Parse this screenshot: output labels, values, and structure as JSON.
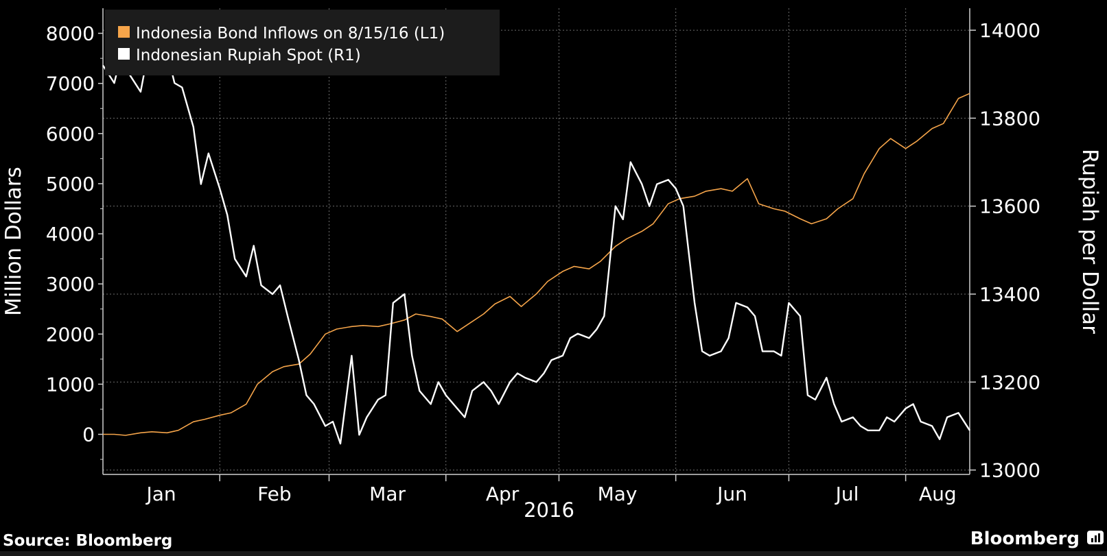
{
  "colors": {
    "background": "#000000",
    "legend_bg": "#1c1c1c",
    "grid": "#6e6e6e",
    "axis": "#cfcfcf",
    "text": "#ffffff",
    "bond_series": "#f6a54a",
    "rupiah_series": "#ffffff"
  },
  "footer": {
    "source": "Source: Bloomberg",
    "brand": "Bloomberg",
    "brand_icon": "bloomberg-terminal-icon"
  },
  "chart_data": {
    "type": "line",
    "title": "",
    "xlabel": "2016",
    "ylabel_left": "Million Dollars",
    "ylabel_right": "Rupiah per Dollar",
    "x_ticks": [
      "Jan",
      "Feb",
      "Mar",
      "Apr",
      "May",
      "Jun",
      "Jul",
      "Aug"
    ],
    "x_range": [
      "2016-01-01",
      "2016-08-18"
    ],
    "y_left": {
      "ticks": [
        0,
        1000,
        2000,
        3000,
        4000,
        5000,
        6000,
        7000,
        8000
      ],
      "range": [
        -800,
        8500
      ]
    },
    "y_right": {
      "ticks": [
        13000,
        13200,
        13400,
        13600,
        13800,
        14000
      ],
      "range": [
        12990,
        14050
      ]
    },
    "grid": true,
    "legend_position": "top-left",
    "series": [
      {
        "name": "Indonesia Bond Inflows on 8/15/16 (L1)",
        "axis": "left",
        "color": "#f6a54a",
        "points": [
          [
            "2016-01-01",
            0
          ],
          [
            "2016-01-04",
            0
          ],
          [
            "2016-01-07",
            -20
          ],
          [
            "2016-01-11",
            30
          ],
          [
            "2016-01-14",
            50
          ],
          [
            "2016-01-18",
            30
          ],
          [
            "2016-01-21",
            80
          ],
          [
            "2016-01-25",
            250
          ],
          [
            "2016-01-28",
            300
          ],
          [
            "2016-02-01",
            380
          ],
          [
            "2016-02-04",
            430
          ],
          [
            "2016-02-08",
            600
          ],
          [
            "2016-02-11",
            1000
          ],
          [
            "2016-02-15",
            1250
          ],
          [
            "2016-02-18",
            1350
          ],
          [
            "2016-02-22",
            1400
          ],
          [
            "2016-02-25",
            1600
          ],
          [
            "2016-02-29",
            2000
          ],
          [
            "2016-03-03",
            2100
          ],
          [
            "2016-03-07",
            2150
          ],
          [
            "2016-03-10",
            2170
          ],
          [
            "2016-03-14",
            2150
          ],
          [
            "2016-03-17",
            2200
          ],
          [
            "2016-03-21",
            2280
          ],
          [
            "2016-03-24",
            2400
          ],
          [
            "2016-03-28",
            2350
          ],
          [
            "2016-03-31",
            2300
          ],
          [
            "2016-04-04",
            2050
          ],
          [
            "2016-04-07",
            2200
          ],
          [
            "2016-04-11",
            2400
          ],
          [
            "2016-04-14",
            2600
          ],
          [
            "2016-04-18",
            2750
          ],
          [
            "2016-04-21",
            2550
          ],
          [
            "2016-04-25",
            2800
          ],
          [
            "2016-04-28",
            3050
          ],
          [
            "2016-05-02",
            3250
          ],
          [
            "2016-05-05",
            3350
          ],
          [
            "2016-05-09",
            3300
          ],
          [
            "2016-05-12",
            3450
          ],
          [
            "2016-05-16",
            3750
          ],
          [
            "2016-05-19",
            3900
          ],
          [
            "2016-05-23",
            4050
          ],
          [
            "2016-05-26",
            4200
          ],
          [
            "2016-05-30",
            4600
          ],
          [
            "2016-06-02",
            4700
          ],
          [
            "2016-06-06",
            4750
          ],
          [
            "2016-06-09",
            4850
          ],
          [
            "2016-06-13",
            4900
          ],
          [
            "2016-06-16",
            4850
          ],
          [
            "2016-06-20",
            5100
          ],
          [
            "2016-06-23",
            4600
          ],
          [
            "2016-06-27",
            4500
          ],
          [
            "2016-06-30",
            4450
          ],
          [
            "2016-07-04",
            4300
          ],
          [
            "2016-07-07",
            4200
          ],
          [
            "2016-07-11",
            4300
          ],
          [
            "2016-07-14",
            4500
          ],
          [
            "2016-07-18",
            4700
          ],
          [
            "2016-07-21",
            5200
          ],
          [
            "2016-07-25",
            5700
          ],
          [
            "2016-07-28",
            5900
          ],
          [
            "2016-08-01",
            5700
          ],
          [
            "2016-08-04",
            5850
          ],
          [
            "2016-08-08",
            6100
          ],
          [
            "2016-08-11",
            6200
          ],
          [
            "2016-08-15",
            6700
          ],
          [
            "2016-08-18",
            6800
          ]
        ]
      },
      {
        "name": "Indonesian Rupiah Spot (R1)",
        "axis": "right",
        "color": "#ffffff",
        "points": [
          [
            "2016-01-01",
            13920
          ],
          [
            "2016-01-04",
            13880
          ],
          [
            "2016-01-06",
            13950
          ],
          [
            "2016-01-08",
            13900
          ],
          [
            "2016-01-11",
            13860
          ],
          [
            "2016-01-13",
            13950
          ],
          [
            "2016-01-15",
            13900
          ],
          [
            "2016-01-18",
            13950
          ],
          [
            "2016-01-20",
            13880
          ],
          [
            "2016-01-22",
            13870
          ],
          [
            "2016-01-25",
            13780
          ],
          [
            "2016-01-27",
            13650
          ],
          [
            "2016-01-29",
            13720
          ],
          [
            "2016-02-01",
            13640
          ],
          [
            "2016-02-03",
            13580
          ],
          [
            "2016-02-05",
            13480
          ],
          [
            "2016-02-08",
            13440
          ],
          [
            "2016-02-10",
            13510
          ],
          [
            "2016-02-12",
            13420
          ],
          [
            "2016-02-15",
            13400
          ],
          [
            "2016-02-17",
            13420
          ],
          [
            "2016-02-19",
            13350
          ],
          [
            "2016-02-22",
            13250
          ],
          [
            "2016-02-24",
            13170
          ],
          [
            "2016-02-26",
            13150
          ],
          [
            "2016-02-29",
            13100
          ],
          [
            "2016-03-02",
            13110
          ],
          [
            "2016-03-04",
            13060
          ],
          [
            "2016-03-07",
            13260
          ],
          [
            "2016-03-09",
            13080
          ],
          [
            "2016-03-11",
            13120
          ],
          [
            "2016-03-14",
            13160
          ],
          [
            "2016-03-16",
            13170
          ],
          [
            "2016-03-18",
            13380
          ],
          [
            "2016-03-21",
            13400
          ],
          [
            "2016-03-23",
            13260
          ],
          [
            "2016-03-25",
            13180
          ],
          [
            "2016-03-28",
            13150
          ],
          [
            "2016-03-30",
            13200
          ],
          [
            "2016-04-01",
            13170
          ],
          [
            "2016-04-04",
            13140
          ],
          [
            "2016-04-06",
            13120
          ],
          [
            "2016-04-08",
            13180
          ],
          [
            "2016-04-11",
            13200
          ],
          [
            "2016-04-13",
            13180
          ],
          [
            "2016-04-15",
            13150
          ],
          [
            "2016-04-18",
            13200
          ],
          [
            "2016-04-20",
            13220
          ],
          [
            "2016-04-22",
            13210
          ],
          [
            "2016-04-25",
            13200
          ],
          [
            "2016-04-27",
            13220
          ],
          [
            "2016-04-29",
            13250
          ],
          [
            "2016-05-02",
            13260
          ],
          [
            "2016-05-04",
            13300
          ],
          [
            "2016-05-06",
            13310
          ],
          [
            "2016-05-09",
            13300
          ],
          [
            "2016-05-11",
            13320
          ],
          [
            "2016-05-13",
            13350
          ],
          [
            "2016-05-16",
            13600
          ],
          [
            "2016-05-18",
            13570
          ],
          [
            "2016-05-20",
            13700
          ],
          [
            "2016-05-23",
            13650
          ],
          [
            "2016-05-25",
            13600
          ],
          [
            "2016-05-27",
            13650
          ],
          [
            "2016-05-30",
            13660
          ],
          [
            "2016-06-01",
            13640
          ],
          [
            "2016-06-03",
            13600
          ],
          [
            "2016-06-06",
            13380
          ],
          [
            "2016-06-08",
            13270
          ],
          [
            "2016-06-10",
            13260
          ],
          [
            "2016-06-13",
            13270
          ],
          [
            "2016-06-15",
            13300
          ],
          [
            "2016-06-17",
            13380
          ],
          [
            "2016-06-20",
            13370
          ],
          [
            "2016-06-22",
            13350
          ],
          [
            "2016-06-24",
            13270
          ],
          [
            "2016-06-27",
            13270
          ],
          [
            "2016-06-29",
            13260
          ],
          [
            "2016-07-01",
            13380
          ],
          [
            "2016-07-04",
            13350
          ],
          [
            "2016-07-06",
            13170
          ],
          [
            "2016-07-08",
            13160
          ],
          [
            "2016-07-11",
            13210
          ],
          [
            "2016-07-13",
            13150
          ],
          [
            "2016-07-15",
            13110
          ],
          [
            "2016-07-18",
            13120
          ],
          [
            "2016-07-20",
            13100
          ],
          [
            "2016-07-22",
            13090
          ],
          [
            "2016-07-25",
            13090
          ],
          [
            "2016-07-27",
            13120
          ],
          [
            "2016-07-29",
            13110
          ],
          [
            "2016-08-01",
            13140
          ],
          [
            "2016-08-03",
            13150
          ],
          [
            "2016-08-05",
            13110
          ],
          [
            "2016-08-08",
            13100
          ],
          [
            "2016-08-10",
            13070
          ],
          [
            "2016-08-12",
            13120
          ],
          [
            "2016-08-15",
            13130
          ],
          [
            "2016-08-18",
            13090
          ]
        ]
      }
    ]
  }
}
